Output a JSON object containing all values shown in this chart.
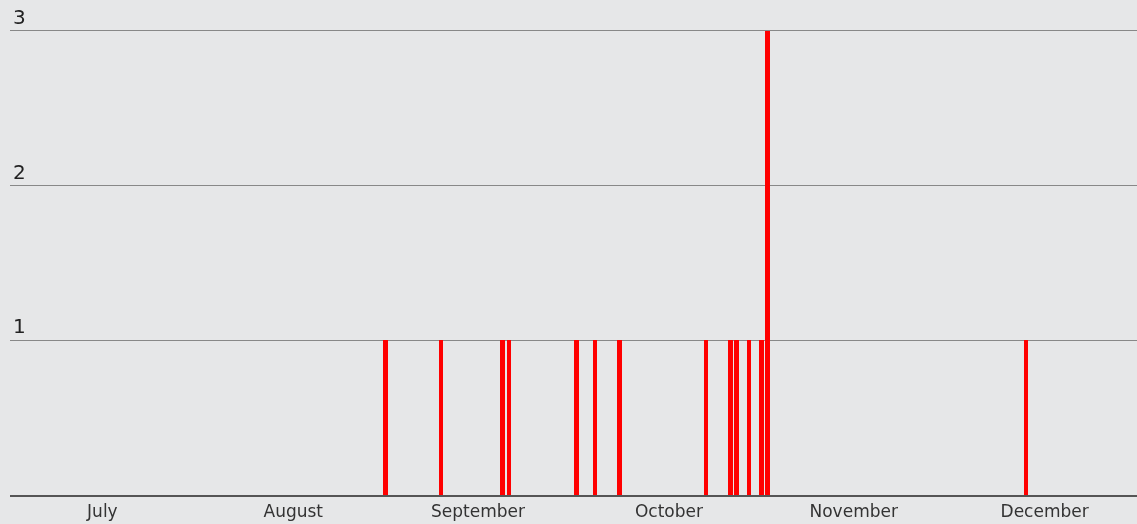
{
  "chart_data": {
    "type": "bar",
    "x": [
      "--08-31",
      "--09-09",
      "--09-19",
      "--09-20",
      "--10-01",
      "--10-04",
      "--10-08",
      "--10-22",
      "--10-26",
      "--10-27",
      "--10-29",
      "--10-31",
      "--11-01",
      "--12-13"
    ],
    "values": [
      1,
      1,
      1,
      1,
      1,
      1,
      1,
      1,
      1,
      1,
      1,
      1,
      3,
      1
    ],
    "color": "#ff0000",
    "xlim": [
      "--07-01",
      "--12-31"
    ],
    "xticks": [
      {
        "value": "--07-16",
        "label": "July"
      },
      {
        "value": "--08-16",
        "label": "August"
      },
      {
        "value": "--09-15",
        "label": "September"
      },
      {
        "value": "--10-16",
        "label": "October"
      },
      {
        "value": "--11-15",
        "label": "November"
      },
      {
        "value": "--12-16",
        "label": "December"
      }
    ],
    "ylim": [
      0,
      3.2
    ],
    "yticks": [
      1,
      2,
      3
    ],
    "grid": "y"
  }
}
